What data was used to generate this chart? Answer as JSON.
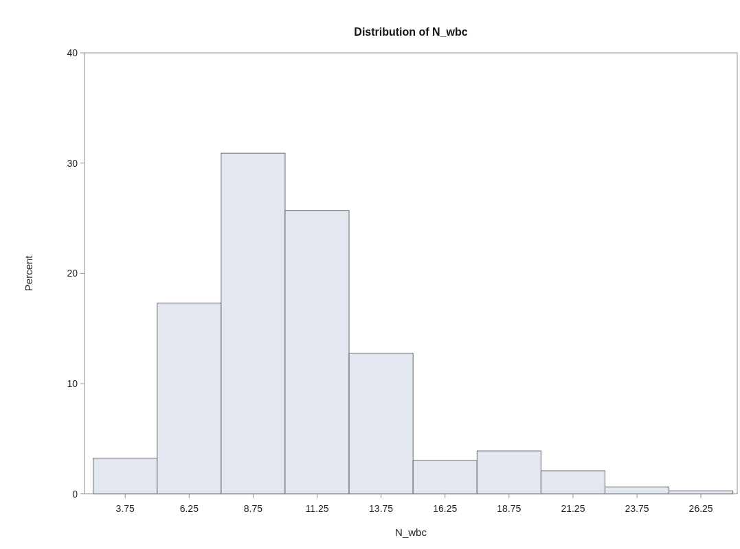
{
  "chart_data": {
    "type": "histogram",
    "title": "Distribution of N_wbc",
    "xlabel": "N_wbc",
    "ylabel": "Percent",
    "bins": [
      2.5,
      5,
      7.5,
      10,
      12.5,
      15,
      17.5,
      20,
      22.5,
      25,
      27.5
    ],
    "values": [
      3.24,
      17.3,
      30.9,
      25.7,
      12.75,
      3.03,
      3.9,
      2.1,
      0.62,
      0.28
    ],
    "color": "#e3e7f0",
    "xlim": [
      2.16,
      27.67
    ],
    "xticks": [
      3.75,
      6.25,
      8.75,
      11.25,
      13.75,
      16.25,
      18.75,
      21.25,
      23.75,
      26.25
    ],
    "ylim": [
      0,
      40
    ],
    "yticks": [
      0,
      10,
      20,
      30,
      40
    ],
    "grid": false
  }
}
